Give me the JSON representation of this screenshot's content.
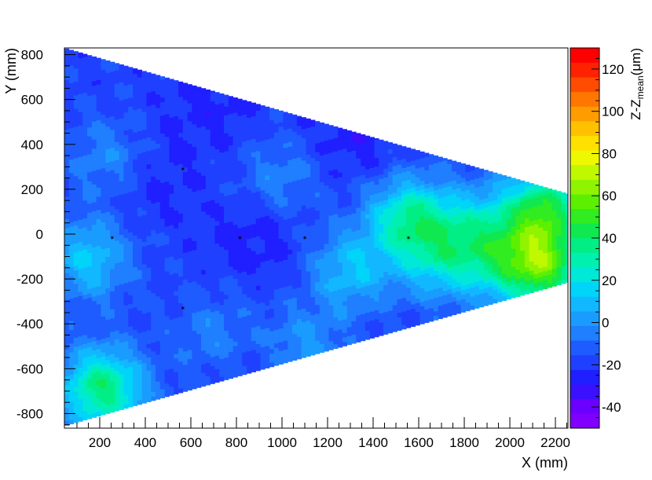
{
  "chart_data": {
    "type": "heatmap",
    "title": "",
    "xlabel": "X (mm)",
    "ylabel": "Y (mm)",
    "zlabel": "Z-Z",
    "zlabel_sub": "mean",
    "zlabel_unit": "(μm)",
    "xlim": [
      45,
      2255
    ],
    "ylim": [
      -865,
      830
    ],
    "x_ticks": [
      200,
      400,
      600,
      800,
      1000,
      1200,
      1400,
      1600,
      1800,
      2000,
      2200
    ],
    "y_ticks": [
      -800,
      -600,
      -400,
      -200,
      0,
      200,
      400,
      600,
      800
    ],
    "zlim": [
      -50,
      130
    ],
    "z_ticks": [
      -40,
      -20,
      0,
      20,
      40,
      60,
      80,
      100,
      120
    ],
    "palette": [
      "#7f00ff",
      "#6a00ff",
      "#3a10ff",
      "#1f1fff",
      "#2040ff",
      "#1e5cff",
      "#1f7fff",
      "#1a9cff",
      "#12b8ff",
      "#00d4f8",
      "#00e8d8",
      "#00f0b0",
      "#00ee84",
      "#10e850",
      "#30ec20",
      "#5cf000",
      "#90f400",
      "#c0f800",
      "#eef800",
      "#ffe000",
      "#ffc000",
      "#ff9c00",
      "#ff7600",
      "#ff4c00",
      "#ff2200",
      "#ff0000"
    ],
    "region": {
      "shape": "trapezoid",
      "x_start": 45,
      "x_end": 2255,
      "y_top_start": 830,
      "y_bottom_start": -855,
      "y_top_end": 180,
      "y_bottom_end": -215
    },
    "base_value": -18,
    "hotspots": [
      {
        "x": 1560,
        "y": 70,
        "z": 30
      },
      {
        "x": 2150,
        "y": 110,
        "z": 40
      },
      {
        "x": 2150,
        "y": -150,
        "z": 45
      },
      {
        "x": 210,
        "y": -690,
        "z": 38
      },
      {
        "x": 150,
        "y": -110,
        "z": 12
      },
      {
        "x": 1300,
        "y": -160,
        "z": 10
      },
      {
        "x": 1700,
        "y": -120,
        "z": 12
      },
      {
        "x": 250,
        "y": 330,
        "z": 2
      },
      {
        "x": 1000,
        "y": 250,
        "z": -2
      },
      {
        "x": 1100,
        "y": -500,
        "z": 0
      },
      {
        "x": 700,
        "y": -450,
        "z": -4
      },
      {
        "x": 1850,
        "y": 40,
        "z": 8
      },
      {
        "x": 1950,
        "y": -120,
        "z": 10
      }
    ],
    "coldspots": [
      {
        "x": 380,
        "y": 270,
        "z": -35
      },
      {
        "x": 900,
        "y": 0,
        "z": -32
      },
      {
        "x": 700,
        "y": 600,
        "z": -30
      },
      {
        "x": 1300,
        "y": 420,
        "z": -32
      },
      {
        "x": 900,
        "y": -700,
        "z": -28
      }
    ],
    "markers": [
      {
        "x": 255,
        "y": -15
      },
      {
        "x": 565,
        "y": 290
      },
      {
        "x": 565,
        "y": -330
      },
      {
        "x": 815,
        "y": -15
      },
      {
        "x": 1100,
        "y": -15
      },
      {
        "x": 1555,
        "y": -15
      }
    ]
  }
}
